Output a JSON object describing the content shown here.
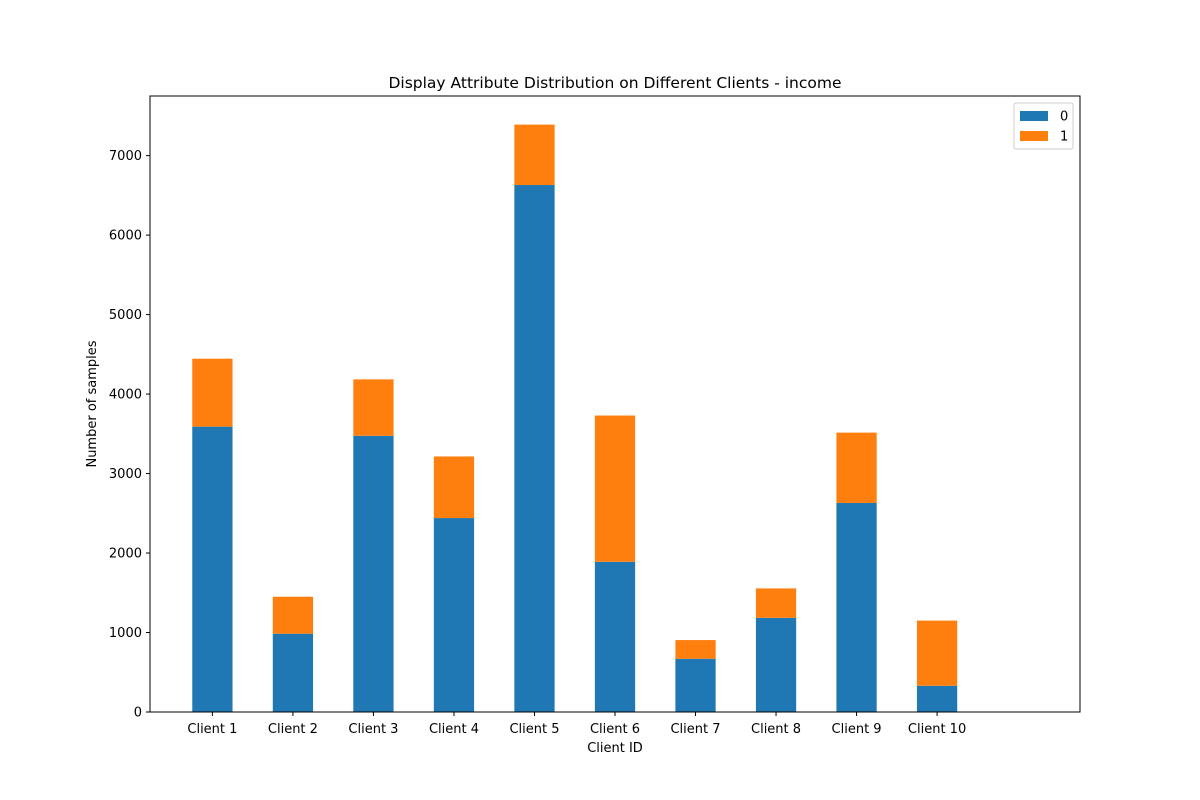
{
  "chart_data": {
    "type": "bar",
    "stacked": true,
    "title": "Display Attribute Distribution on Different Clients - income",
    "xlabel": "Client ID",
    "ylabel": "Number of samples",
    "categories": [
      "Client 1",
      "Client 2",
      "Client 3",
      "Client 4",
      "Client 5",
      "Client 6",
      "Client 7",
      "Client 8",
      "Client 9",
      "Client 10"
    ],
    "series": [
      {
        "name": "0",
        "color": "#1f77b4",
        "values": [
          3590,
          985,
          3475,
          2440,
          6630,
          1890,
          670,
          1185,
          2630,
          330
        ]
      },
      {
        "name": "1",
        "color": "#ff7f0e",
        "values": [
          855,
          465,
          710,
          775,
          760,
          1840,
          235,
          370,
          885,
          820
        ]
      }
    ],
    "ylim": [
      0,
      7750
    ],
    "yticks": [
      0,
      1000,
      2000,
      3000,
      4000,
      5000,
      6000,
      7000
    ],
    "legend_position": "top-right",
    "grid": false
  }
}
